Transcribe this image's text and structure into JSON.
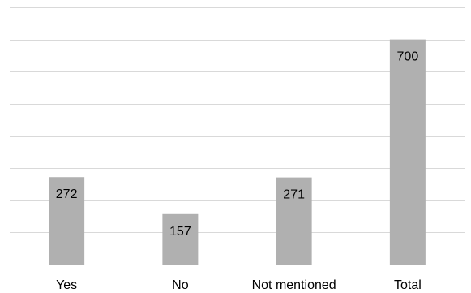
{
  "chart_data": {
    "type": "bar",
    "categories": [
      "Yes",
      "No",
      "Not mentioned",
      "Total"
    ],
    "values": [
      272,
      157,
      271,
      700
    ],
    "data_labels": [
      "272",
      "157",
      "271",
      "700"
    ],
    "title": "",
    "xlabel": "",
    "ylabel": "",
    "ylim": [
      0,
      800
    ],
    "y_gridline_step": 100,
    "grid": true,
    "legend": "none",
    "colors": {
      "bar": "#b0b0b0",
      "grid": "#d9d9d9",
      "text": "#000000"
    }
  }
}
